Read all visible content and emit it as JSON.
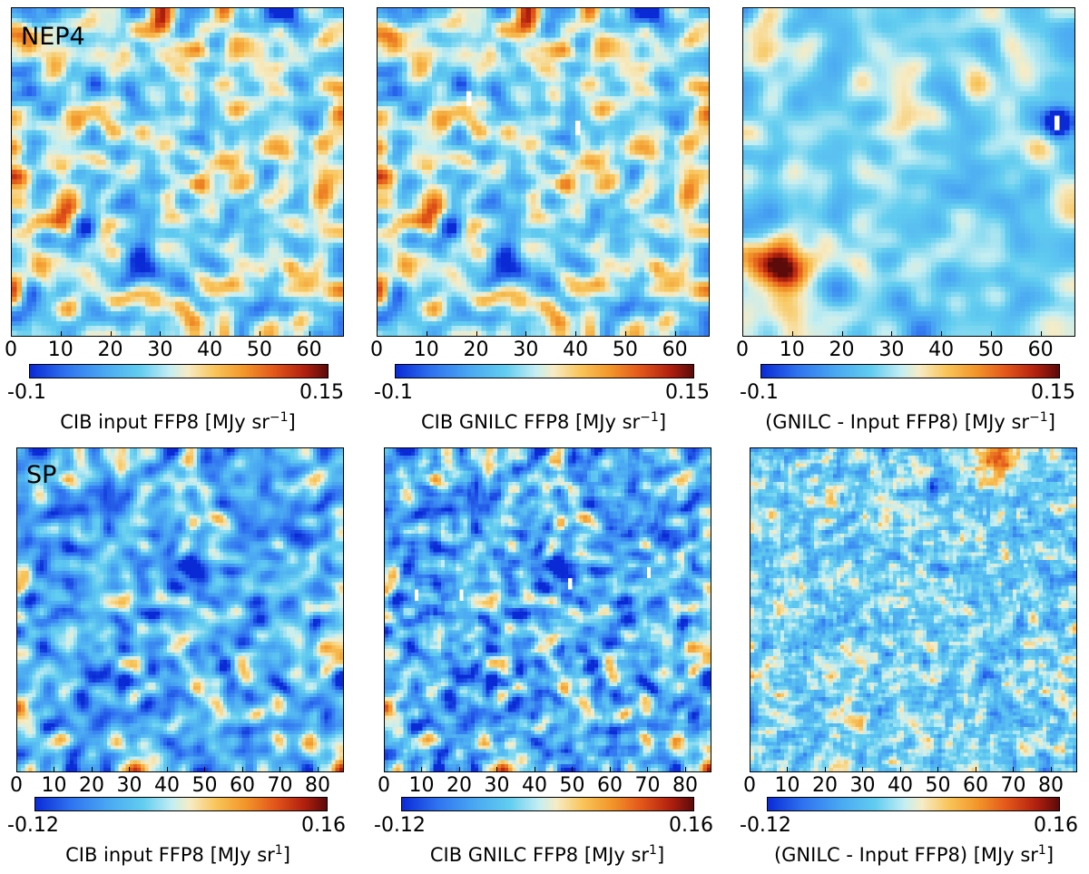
{
  "chart_data": [
    {
      "type": "heatmap",
      "field": "NEP4",
      "map_label": "NEP4",
      "title": "CIB input FFP8 [MJy sr",
      "unit_exponent": "−1",
      "unit_close": "]",
      "x_ticks": [
        "0",
        "10",
        "20",
        "30",
        "40",
        "50",
        "60"
      ],
      "xlim": [
        0,
        67
      ],
      "colorbar": {
        "min_label": "-0.1",
        "max_label": "0.15",
        "min": -0.1,
        "max": 0.15
      },
      "seed": 11,
      "smooth": 3,
      "features": []
    },
    {
      "type": "heatmap",
      "field": "NEP4",
      "map_label": "",
      "title": "CIB GNILC FFP8 [MJy sr",
      "unit_exponent": "−1",
      "unit_close": "]",
      "x_ticks": [
        "0",
        "10",
        "20",
        "30",
        "40",
        "50",
        "60"
      ],
      "xlim": [
        0,
        67
      ],
      "colorbar": {
        "min_label": "-0.1",
        "max_label": "0.15",
        "min": -0.1,
        "max": 0.15
      },
      "seed": 11,
      "smooth": 3,
      "features": [
        {
          "kind": "hole",
          "x": 18,
          "y": 18
        },
        {
          "kind": "hole",
          "x": 40,
          "y": 24
        }
      ]
    },
    {
      "type": "heatmap",
      "field": "NEP4",
      "map_label": "",
      "title": "(GNILC - Input FFP8) [MJy sr",
      "unit_exponent": "−1",
      "unit_close": "]",
      "x_ticks": [
        "0",
        "10",
        "20",
        "30",
        "40",
        "50",
        "60"
      ],
      "xlim": [
        0,
        67
      ],
      "colorbar": {
        "min_label": "-0.1",
        "max_label": "0.15",
        "min": -0.1,
        "max": 0.15
      },
      "seed": 23,
      "smooth": 6,
      "amp": 0.45,
      "features": [
        {
          "kind": "blob",
          "x": 6,
          "y": 53,
          "v": 1.0,
          "r": 4
        },
        {
          "kind": "blob",
          "x": 4,
          "y": 4,
          "v": 0.45,
          "r": 3
        },
        {
          "kind": "dip",
          "x": 63,
          "y": 23,
          "v": -1.0,
          "r": 2
        },
        {
          "kind": "hole",
          "x": 63,
          "y": 23
        }
      ]
    },
    {
      "type": "heatmap",
      "field": "SP",
      "map_label": "SP",
      "title": "CIB input FFP8 [MJy sr",
      "unit_exponent": "1",
      "unit_close": "]",
      "x_ticks": [
        "0",
        "10",
        "20",
        "30",
        "40",
        "50",
        "60",
        "70",
        "80"
      ],
      "xlim": [
        0,
        87
      ],
      "colorbar": {
        "min_label": "-0.12",
        "max_label": "0.16",
        "min": -0.12,
        "max": 0.16
      },
      "seed": 37,
      "smooth": 3,
      "features": []
    },
    {
      "type": "heatmap",
      "field": "SP",
      "map_label": "",
      "title": "CIB GNILC FFP8 [MJy sr",
      "unit_exponent": "1",
      "unit_close": "]",
      "x_ticks": [
        "0",
        "10",
        "20",
        "30",
        "40",
        "50",
        "60",
        "70",
        "80"
      ],
      "xlim": [
        0,
        87
      ],
      "colorbar": {
        "min_label": "-0.12",
        "max_label": "0.16",
        "min": -0.12,
        "max": 0.16
      },
      "seed": 37,
      "smooth": 2,
      "features": [
        {
          "kind": "hole",
          "x": 8,
          "y": 39
        },
        {
          "kind": "hole",
          "x": 20,
          "y": 39
        },
        {
          "kind": "hole",
          "x": 70,
          "y": 33
        },
        {
          "kind": "hole",
          "x": 49,
          "y": 36
        }
      ]
    },
    {
      "type": "heatmap",
      "field": "SP",
      "map_label": "",
      "title": "(GNILC - Input FFP8) [MJy sr",
      "unit_exponent": "1",
      "unit_close": "]",
      "x_ticks": [
        "0",
        "10",
        "20",
        "30",
        "40",
        "50",
        "60",
        "70",
        "80"
      ],
      "xlim": [
        0,
        87
      ],
      "colorbar": {
        "min_label": "-0.12",
        "max_label": "0.16",
        "min": -0.12,
        "max": 0.16
      },
      "seed": 53,
      "smooth": 1,
      "amp": 0.55,
      "features": [
        {
          "kind": "blob",
          "x": 65,
          "y": 3,
          "v": 0.7,
          "r": 4
        },
        {
          "kind": "dip",
          "x": 48,
          "y": 12,
          "v": -0.5,
          "r": 2
        }
      ]
    }
  ]
}
